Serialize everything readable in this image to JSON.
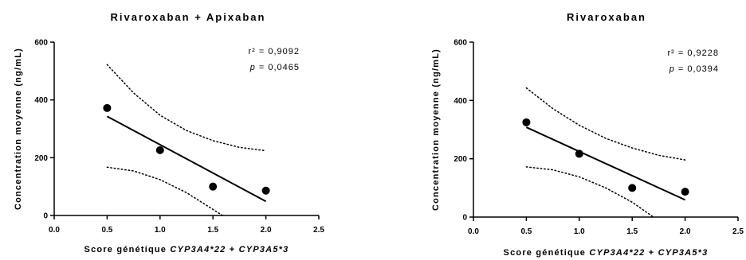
{
  "chart_data": [
    {
      "type": "scatter",
      "title": "Rivaroxaban + Apixaban",
      "xlabel_prefix": "Score génétique ",
      "xlabel_gene1": "CYP3A4*22",
      "xlabel_mid": " + ",
      "xlabel_gene2": "CYP3A5*3",
      "ylabel": "Concentration moyenne (ng/mL)",
      "xlim": [
        0.0,
        2.5
      ],
      "ylim": [
        0,
        600
      ],
      "xticks": [
        "0.0",
        "0.5",
        "1.0",
        "1.5",
        "2.0",
        "2.5"
      ],
      "yticks": [
        "0",
        "200",
        "400",
        "600"
      ],
      "points": [
        {
          "x": 0.5,
          "y": 372
        },
        {
          "x": 1.0,
          "y": 226
        },
        {
          "x": 1.5,
          "y": 100
        },
        {
          "x": 2.0,
          "y": 86
        }
      ],
      "fit_line": {
        "x": [
          0.5,
          2.0
        ],
        "y": [
          343,
          49
        ]
      },
      "ci_upper": [
        [
          0.5,
          522
        ],
        [
          0.75,
          424
        ],
        [
          1.0,
          347
        ],
        [
          1.25,
          294
        ],
        [
          1.5,
          259
        ],
        [
          1.75,
          236
        ],
        [
          2.0,
          224
        ]
      ],
      "ci_lower": [
        [
          0.5,
          167
        ],
        [
          0.75,
          154
        ],
        [
          1.0,
          124
        ],
        [
          1.25,
          79
        ],
        [
          1.5,
          21
        ],
        [
          1.59,
          0
        ]
      ],
      "r2_label": "r² = 0,9092",
      "p_symbol": "p",
      "p_value": " = 0,0465"
    },
    {
      "type": "scatter",
      "title": "Rivaroxaban",
      "xlabel_prefix": "Score génétique ",
      "xlabel_gene1": "CYP3A4*22",
      "xlabel_mid": " + ",
      "xlabel_gene2": "CYP3A5*3",
      "ylabel": "Concentration moyenne (ng/mL)",
      "xlim": [
        0.0,
        2.5
      ],
      "ylim": [
        0,
        600
      ],
      "xticks": [
        "0.0",
        "0.5",
        "1.0",
        "1.5",
        "2.0",
        "2.5"
      ],
      "yticks": [
        "0",
        "200",
        "400",
        "600"
      ],
      "points": [
        {
          "x": 0.5,
          "y": 325
        },
        {
          "x": 1.0,
          "y": 217
        },
        {
          "x": 1.5,
          "y": 100
        },
        {
          "x": 2.0,
          "y": 87
        }
      ],
      "fit_line": {
        "x": [
          0.5,
          2.0
        ],
        "y": [
          308,
          59
        ]
      },
      "ci_upper": [
        [
          0.5,
          443
        ],
        [
          0.75,
          372
        ],
        [
          1.0,
          315
        ],
        [
          1.25,
          270
        ],
        [
          1.5,
          237
        ],
        [
          1.75,
          212
        ],
        [
          2.0,
          196
        ]
      ],
      "ci_lower": [
        [
          0.5,
          172
        ],
        [
          0.75,
          162
        ],
        [
          1.0,
          138
        ],
        [
          1.25,
          100
        ],
        [
          1.5,
          51
        ],
        [
          1.7,
          0
        ]
      ],
      "r2_label": "r² = 0,9228",
      "p_symbol": "p",
      "p_value": " = 0,0394"
    }
  ]
}
